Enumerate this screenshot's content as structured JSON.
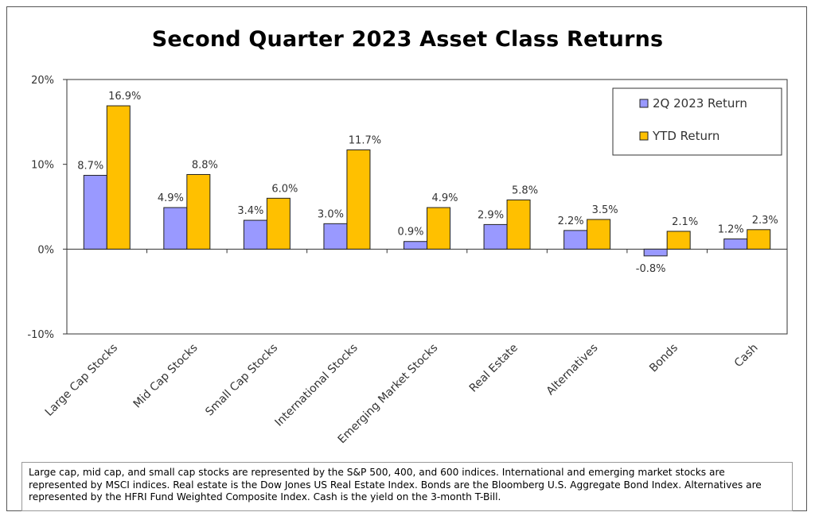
{
  "chart_data": {
    "type": "bar",
    "title": "Second Quarter 2023 Asset Class Returns",
    "categories": [
      "Large Cap Stocks",
      "Mid Cap Stocks",
      "Small Cap Stocks",
      "International Stocks",
      "Emerging Market Stocks",
      "Real Estate",
      "Alternatives",
      "Bonds",
      "Cash"
    ],
    "series": [
      {
        "name": "2Q 2023 Return",
        "color": "#9999ff",
        "values": [
          8.7,
          4.9,
          3.4,
          3.0,
          0.9,
          2.9,
          2.2,
          -0.8,
          1.2
        ],
        "labels": [
          "8.7%",
          "4.9%",
          "3.4%",
          "3.0%",
          "0.9%",
          "2.9%",
          "2.2%",
          "-0.8%",
          "1.2%"
        ]
      },
      {
        "name": "YTD Return",
        "color": "#ffc000",
        "values": [
          16.9,
          8.8,
          6.0,
          11.7,
          4.9,
          5.8,
          3.5,
          2.1,
          2.3
        ],
        "labels": [
          "16.9%",
          "8.8%",
          "6.0%",
          "11.7%",
          "4.9%",
          "5.8%",
          "3.5%",
          "2.1%",
          "2.3%"
        ]
      }
    ],
    "yticks": [
      20,
      10,
      0,
      -10
    ],
    "ytick_labels": [
      "20%",
      "10%",
      "0%",
      "-10%"
    ],
    "ylim": [
      -10,
      20
    ],
    "legend_position": "top-right",
    "grid": false
  },
  "footnote": "Large cap, mid cap, and small cap stocks are represented by the S&P 500, 400, and 600 indices.  International and emerging market stocks are represented by MSCI indices.  Real estate is the Dow Jones US Real Estate Index.  Bonds are the Bloomberg U.S. Aggregate Bond Index.  Alternatives are represented by the HFRI Fund Weighted Composite Index.  Cash is the yield on the 3-month T-Bill."
}
